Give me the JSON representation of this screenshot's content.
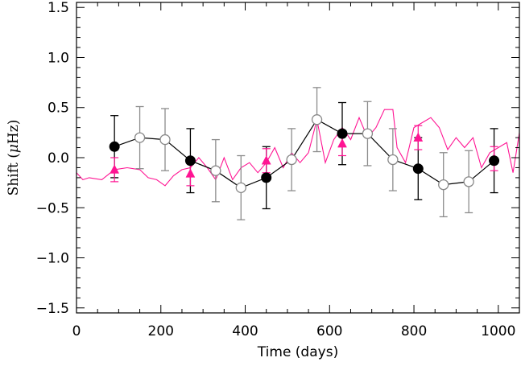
{
  "chart_data": {
    "type": "scatter",
    "xlabel": "Time (days)",
    "ylabel": {
      "prefix": "Shift (",
      "symbol": "μ",
      "suffix": "Hz)"
    },
    "xlim": [
      0,
      1050
    ],
    "ylim": [
      -1.55,
      1.55
    ],
    "x_ticks": [
      0,
      200,
      400,
      600,
      800,
      1000
    ],
    "y_ticks": [
      -1.5,
      -1.0,
      -0.5,
      0.0,
      0.5,
      1.0,
      1.5
    ],
    "x_tick_labels": [
      "0",
      "200",
      "400",
      "600",
      "800",
      "1000"
    ],
    "y_tick_labels": [
      "−1.5",
      "−1.0",
      "−0.5",
      "0.0",
      "0.5",
      "1.0",
      "1.5"
    ],
    "grid": false,
    "colors": {
      "filled": "#000000",
      "open": "#888888",
      "magenta": "#ff1493",
      "errorbar_filled": "#000000",
      "errorbar_open": "#8c8c8c"
    },
    "series": [
      {
        "style": "filled-circle-errorbar",
        "x": [
          90,
          270,
          450,
          630,
          810,
          990
        ],
        "y": [
          0.11,
          -0.03,
          -0.2,
          0.24,
          -0.11,
          -0.03
        ],
        "err": [
          0.31,
          0.32,
          0.31,
          0.31,
          0.31,
          0.32
        ]
      },
      {
        "style": "open-circle-errorbar",
        "x": [
          150,
          210,
          330,
          390,
          510,
          570,
          690,
          750,
          870,
          930
        ],
        "y": [
          0.2,
          0.18,
          -0.13,
          -0.3,
          -0.02,
          0.38,
          0.24,
          -0.02,
          -0.27,
          -0.24
        ],
        "err": [
          0.31,
          0.31,
          0.31,
          0.32,
          0.31,
          0.32,
          0.32,
          0.31,
          0.32,
          0.31
        ]
      },
      {
        "style": "triangle-errorbar",
        "x": [
          90,
          270,
          450,
          630,
          810,
          990
        ],
        "y": [
          -0.12,
          -0.16,
          -0.03,
          0.14,
          0.2,
          -0.01
        ],
        "err": [
          0.12,
          0.12,
          0.12,
          0.12,
          0.12,
          0.12
        ]
      },
      {
        "style": "thin-line",
        "x": [
          0,
          15,
          30,
          60,
          90,
          120,
          150,
          170,
          190,
          210,
          230,
          250,
          270,
          290,
          310,
          330,
          350,
          370,
          390,
          410,
          430,
          450,
          470,
          490,
          510,
          530,
          550,
          570,
          590,
          610,
          630,
          650,
          670,
          690,
          710,
          730,
          750,
          760,
          780,
          800,
          820,
          840,
          860,
          880,
          900,
          920,
          940,
          960,
          980,
          1000,
          1020,
          1035,
          1050
        ],
        "y": [
          -0.15,
          -0.22,
          -0.2,
          -0.22,
          -0.12,
          -0.1,
          -0.12,
          -0.2,
          -0.22,
          -0.28,
          -0.18,
          -0.12,
          -0.1,
          0.0,
          -0.1,
          -0.22,
          0.0,
          -0.22,
          -0.1,
          -0.05,
          -0.15,
          -0.05,
          0.1,
          -0.1,
          0.05,
          -0.05,
          0.05,
          0.38,
          -0.05,
          0.18,
          0.3,
          0.18,
          0.4,
          0.2,
          0.3,
          0.48,
          0.48,
          0.1,
          -0.05,
          0.3,
          0.35,
          0.4,
          0.3,
          0.08,
          0.2,
          0.1,
          0.2,
          -0.1,
          0.05,
          0.1,
          0.15,
          -0.15,
          0.25
        ]
      }
    ]
  }
}
